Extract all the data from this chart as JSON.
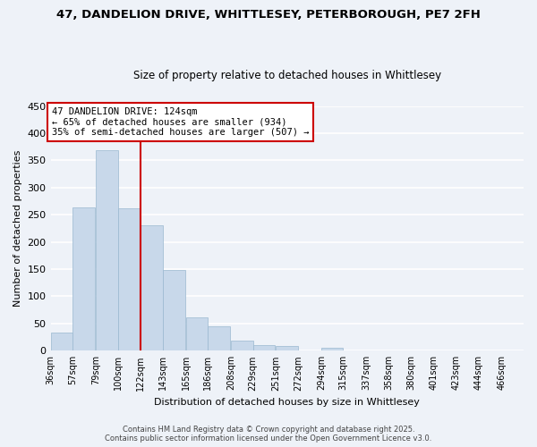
{
  "title": "47, DANDELION DRIVE, WHITTLESEY, PETERBOROUGH, PE7 2FH",
  "subtitle": "Size of property relative to detached houses in Whittlesey",
  "xlabel": "Distribution of detached houses by size in Whittlesey",
  "ylabel": "Number of detached properties",
  "bar_color": "#c8d8ea",
  "bar_edge_color": "#9ab8d0",
  "bin_labels": [
    "36sqm",
    "57sqm",
    "79sqm",
    "100sqm",
    "122sqm",
    "143sqm",
    "165sqm",
    "186sqm",
    "208sqm",
    "229sqm",
    "251sqm",
    "272sqm",
    "294sqm",
    "315sqm",
    "337sqm",
    "358sqm",
    "380sqm",
    "401sqm",
    "423sqm",
    "444sqm",
    "466sqm"
  ],
  "bin_edges": [
    36,
    57,
    79,
    100,
    122,
    143,
    165,
    186,
    208,
    229,
    251,
    272,
    294,
    315,
    337,
    358,
    380,
    401,
    423,
    444,
    466
  ],
  "bar_heights": [
    33,
    263,
    369,
    262,
    230,
    148,
    61,
    45,
    19,
    11,
    9,
    0,
    5,
    0,
    0,
    0,
    1,
    0,
    0,
    0,
    1
  ],
  "vline_x": 122,
  "vline_color": "#cc0000",
  "annotation_lines": [
    "47 DANDELION DRIVE: 124sqm",
    "← 65% of detached houses are smaller (934)",
    "35% of semi-detached houses are larger (507) →"
  ],
  "annotation_box_color": "#ffffff",
  "annotation_box_edge": "#cc0000",
  "ylim": [
    0,
    450
  ],
  "yticks": [
    0,
    50,
    100,
    150,
    200,
    250,
    300,
    350,
    400,
    450
  ],
  "footer_line1": "Contains HM Land Registry data © Crown copyright and database right 2025.",
  "footer_line2": "Contains public sector information licensed under the Open Government Licence v3.0.",
  "background_color": "#eef2f8",
  "grid_color": "#ffffff"
}
